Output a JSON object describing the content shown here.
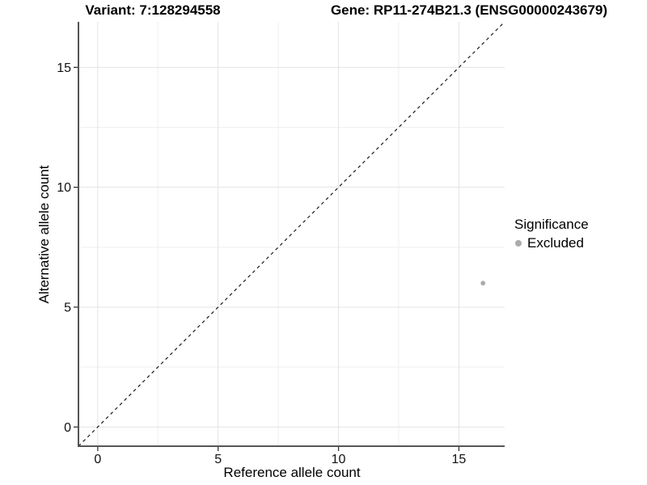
{
  "header": {
    "variant_title": "Variant: 7:128294558",
    "gene_title": "Gene: RP11-274B21.3 (ENSG00000243679)"
  },
  "chart_data": {
    "type": "scatter",
    "xlabel": "Reference allele count",
    "ylabel": "Alternative allele count",
    "xlim": [
      -0.8,
      16.9
    ],
    "ylim": [
      -0.8,
      16.9
    ],
    "x_major_ticks": [
      0,
      5,
      10,
      15
    ],
    "y_major_ticks": [
      0,
      5,
      10,
      15
    ],
    "x_minor_gridlines": [
      2.5,
      7.5,
      12.5
    ],
    "y_minor_gridlines": [
      2.5,
      7.5,
      12.5
    ],
    "grid": "on",
    "legend_position": "right",
    "series": [
      {
        "name": "Excluded",
        "color": "#ababab",
        "points": [
          {
            "x": 16,
            "y": 6
          }
        ]
      }
    ],
    "reference_line": {
      "type": "identity",
      "style": "dashed",
      "color": "#1a1a1a",
      "from": "bottom-left",
      "to": "top-right"
    }
  },
  "legend": {
    "title": "Significance",
    "entries": [
      {
        "label": "Excluded",
        "color": "#ababab"
      }
    ]
  },
  "colors": {
    "axis_line": "#555555",
    "tick_mark": "#333333",
    "grid_major": "#e3e3e3",
    "grid_minor": "#efefef",
    "tick_label": "#111111"
  }
}
